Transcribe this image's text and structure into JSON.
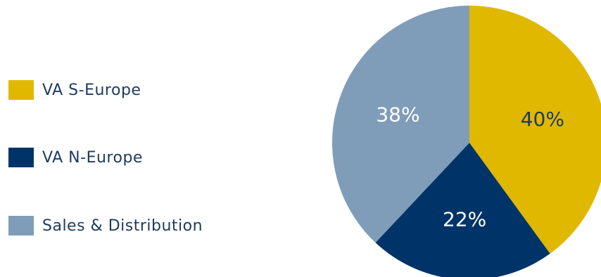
{
  "chart_data": {
    "type": "pie",
    "slices": [
      {
        "label": "VA S-Europe",
        "value": 40,
        "color": "#e0b800",
        "text_color": "#1e3a5f",
        "display": "40%"
      },
      {
        "label": "VA N-Europe",
        "value": 22,
        "color": "#003468",
        "text_color": "#ffffff",
        "display": "22%"
      },
      {
        "label": "Sales & Distribution",
        "value": 38,
        "color": "#7f9db8",
        "text_color": "#ffffff",
        "display": "38%"
      }
    ],
    "legend_placement": "left"
  }
}
